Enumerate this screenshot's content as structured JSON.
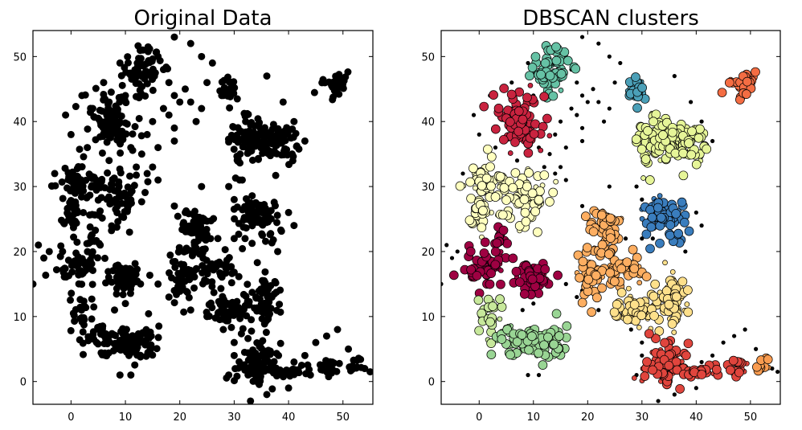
{
  "chart_data": [
    {
      "type": "scatter",
      "title": "Original Data",
      "xlim": [
        -7,
        55.5
      ],
      "ylim": [
        -3.5,
        54
      ],
      "xticks": [
        "0",
        "10",
        "20",
        "30",
        "40",
        "50"
      ],
      "yticks": [
        "0",
        "10",
        "20",
        "30",
        "40",
        "50"
      ],
      "grid": false,
      "marker_color": "#000000",
      "points": "same point set as the DBSCAN panel, all drawn black"
    },
    {
      "type": "scatter",
      "title": "DBSCAN clusters",
      "xlim": [
        -7,
        55.5
      ],
      "ylim": [
        -3.5,
        54
      ],
      "xticks": [
        "0",
        "10",
        "20",
        "30",
        "40",
        "50"
      ],
      "yticks": [
        "0",
        "10",
        "20",
        "30",
        "40",
        "50"
      ],
      "grid": false,
      "noise_color": "#000000",
      "clusters": [
        {
          "color": "#66c2a5",
          "blobs": [
            {
              "cx": 13,
              "cy": 48,
              "sx": 1.8,
              "sy": 1.8,
              "n": 70
            }
          ]
        },
        {
          "color": "#c9233f",
          "blobs": [
            {
              "cx": 7.5,
              "cy": 40,
              "sx": 1.9,
              "sy": 2.0,
              "n": 110
            }
          ]
        },
        {
          "color": "#4ba0b8",
          "blobs": [
            {
              "cx": 29,
              "cy": 45,
              "sx": 0.9,
              "sy": 1.2,
              "n": 25
            }
          ]
        },
        {
          "color": "#f46d43",
          "blobs": [
            {
              "cx": 48.5,
              "cy": 46,
              "sx": 1.1,
              "sy": 1.0,
              "n": 35
            }
          ]
        },
        {
          "color": "#e6f598",
          "blobs": [
            {
              "cx": 33,
              "cy": 37,
              "sx": 2.6,
              "sy": 2.0,
              "n": 110
            },
            {
              "cx": 39,
              "cy": 36.5,
              "sx": 1.8,
              "sy": 1.4,
              "n": 40
            }
          ]
        },
        {
          "color": "#ffffbf",
          "blobs": [
            {
              "cx": 1,
              "cy": 31,
              "sx": 2.2,
              "sy": 1.5,
              "n": 60
            },
            {
              "cx": 8,
              "cy": 28,
              "sx": 2.4,
              "sy": 2.4,
              "n": 70
            },
            {
              "cx": 0.5,
              "cy": 26,
              "sx": 1.4,
              "sy": 1.3,
              "n": 30
            }
          ]
        },
        {
          "color": "#3a7dbd",
          "blobs": [
            {
              "cx": 34,
              "cy": 25.5,
              "sx": 2.2,
              "sy": 1.5,
              "n": 80
            }
          ]
        },
        {
          "color": "#fdae61",
          "blobs": [
            {
              "cx": 23,
              "cy": 23,
              "sx": 1.5,
              "sy": 2.0,
              "n": 60
            },
            {
              "cx": 21,
              "cy": 16.5,
              "sx": 1.8,
              "sy": 1.8,
              "n": 50
            },
            {
              "cx": 27,
              "cy": 17.5,
              "sx": 1.8,
              "sy": 1.3,
              "n": 40
            }
          ]
        },
        {
          "color": "#9e0142",
          "blobs": [
            {
              "cx": 1,
              "cy": 17.5,
              "sx": 1.8,
              "sy": 1.5,
              "n": 50
            },
            {
              "cx": 10,
              "cy": 16,
              "sx": 1.8,
              "sy": 1.2,
              "n": 60
            },
            {
              "cx": 4,
              "cy": 21.5,
              "sx": 0.8,
              "sy": 1.2,
              "n": 15
            }
          ]
        },
        {
          "color": "#fee08b",
          "blobs": [
            {
              "cx": 29,
              "cy": 11,
              "sx": 2.5,
              "sy": 1.2,
              "n": 60
            },
            {
              "cx": 36,
              "cy": 13,
              "sx": 1.5,
              "sy": 2.2,
              "n": 60
            }
          ]
        },
        {
          "color": "#c7e89b",
          "blobs": [
            {
              "cx": 2,
              "cy": 10,
              "sx": 1.0,
              "sy": 1.6,
              "n": 25
            }
          ]
        },
        {
          "color": "#99d594",
          "blobs": [
            {
              "cx": 10,
              "cy": 6,
              "sx": 3.2,
              "sy": 1.3,
              "n": 110
            }
          ]
        },
        {
          "color": "#e0453d",
          "blobs": [
            {
              "cx": 34,
              "cy": 2.5,
              "sx": 1.8,
              "sy": 1.7,
              "n": 90
            },
            {
              "cx": 41,
              "cy": 1.5,
              "sx": 2.5,
              "sy": 0.6,
              "n": 30
            },
            {
              "cx": 47.5,
              "cy": 2.2,
              "sx": 1.0,
              "sy": 0.9,
              "n": 20
            }
          ]
        },
        {
          "color": "#f99b4f",
          "blobs": [
            {
              "cx": 52,
              "cy": 2.5,
              "sx": 0.6,
              "sy": 0.8,
              "n": 12
            }
          ]
        }
      ],
      "noise": [
        [
          -1,
          41
        ],
        [
          2,
          44
        ],
        [
          4,
          42
        ],
        [
          0,
          38
        ],
        [
          6,
          46
        ],
        [
          9,
          49
        ],
        [
          16,
          50
        ],
        [
          17,
          48
        ],
        [
          18,
          46
        ],
        [
          19,
          44
        ],
        [
          17,
          42
        ],
        [
          15,
          40
        ],
        [
          14,
          38
        ],
        [
          16,
          36
        ],
        [
          13,
          35
        ],
        [
          12,
          33
        ],
        [
          14,
          32
        ],
        [
          18,
          41
        ],
        [
          19,
          39
        ],
        [
          20,
          43
        ],
        [
          21,
          45
        ],
        [
          22,
          43
        ],
        [
          24,
          42
        ],
        [
          23,
          40
        ],
        [
          19,
          37
        ],
        [
          16,
          31
        ],
        [
          15,
          33
        ],
        [
          22,
          52
        ],
        [
          19,
          53
        ],
        [
          10,
          44
        ],
        [
          11,
          36
        ],
        [
          9,
          38
        ],
        [
          3,
          36
        ],
        [
          -3,
          32
        ],
        [
          7,
          43
        ],
        [
          19,
          27
        ],
        [
          21,
          26
        ],
        [
          24,
          30
        ],
        [
          30,
          28
        ],
        [
          29,
          30
        ],
        [
          31,
          31
        ],
        [
          27,
          22
        ],
        [
          30,
          22
        ],
        [
          32,
          22
        ],
        [
          41,
          24
        ],
        [
          40,
          26
        ],
        [
          38,
          20
        ],
        [
          19,
          14
        ],
        [
          18,
          13
        ],
        [
          22,
          11
        ],
        [
          25,
          10
        ],
        [
          28,
          8
        ],
        [
          30,
          6
        ],
        [
          29,
          1
        ],
        [
          30,
          4
        ],
        [
          33,
          -3
        ],
        [
          36,
          -2
        ],
        [
          40,
          -1
        ],
        [
          41,
          3
        ],
        [
          43,
          4
        ],
        [
          45,
          6
        ],
        [
          47,
          7
        ],
        [
          49,
          8
        ],
        [
          51,
          5
        ],
        [
          54,
          2
        ],
        [
          55,
          1.5
        ],
        [
          -7,
          15
        ],
        [
          -5,
          19
        ],
        [
          -6,
          21
        ],
        [
          -4,
          20
        ],
        [
          8,
          11
        ],
        [
          10,
          12
        ],
        [
          9,
          1
        ],
        [
          11,
          1
        ],
        [
          16,
          15
        ],
        [
          7,
          34
        ],
        [
          39,
          43
        ],
        [
          41,
          40
        ],
        [
          43,
          37
        ],
        [
          36,
          47
        ],
        [
          26,
          49
        ],
        [
          24,
          50
        ],
        [
          25,
          46
        ]
      ]
    }
  ]
}
